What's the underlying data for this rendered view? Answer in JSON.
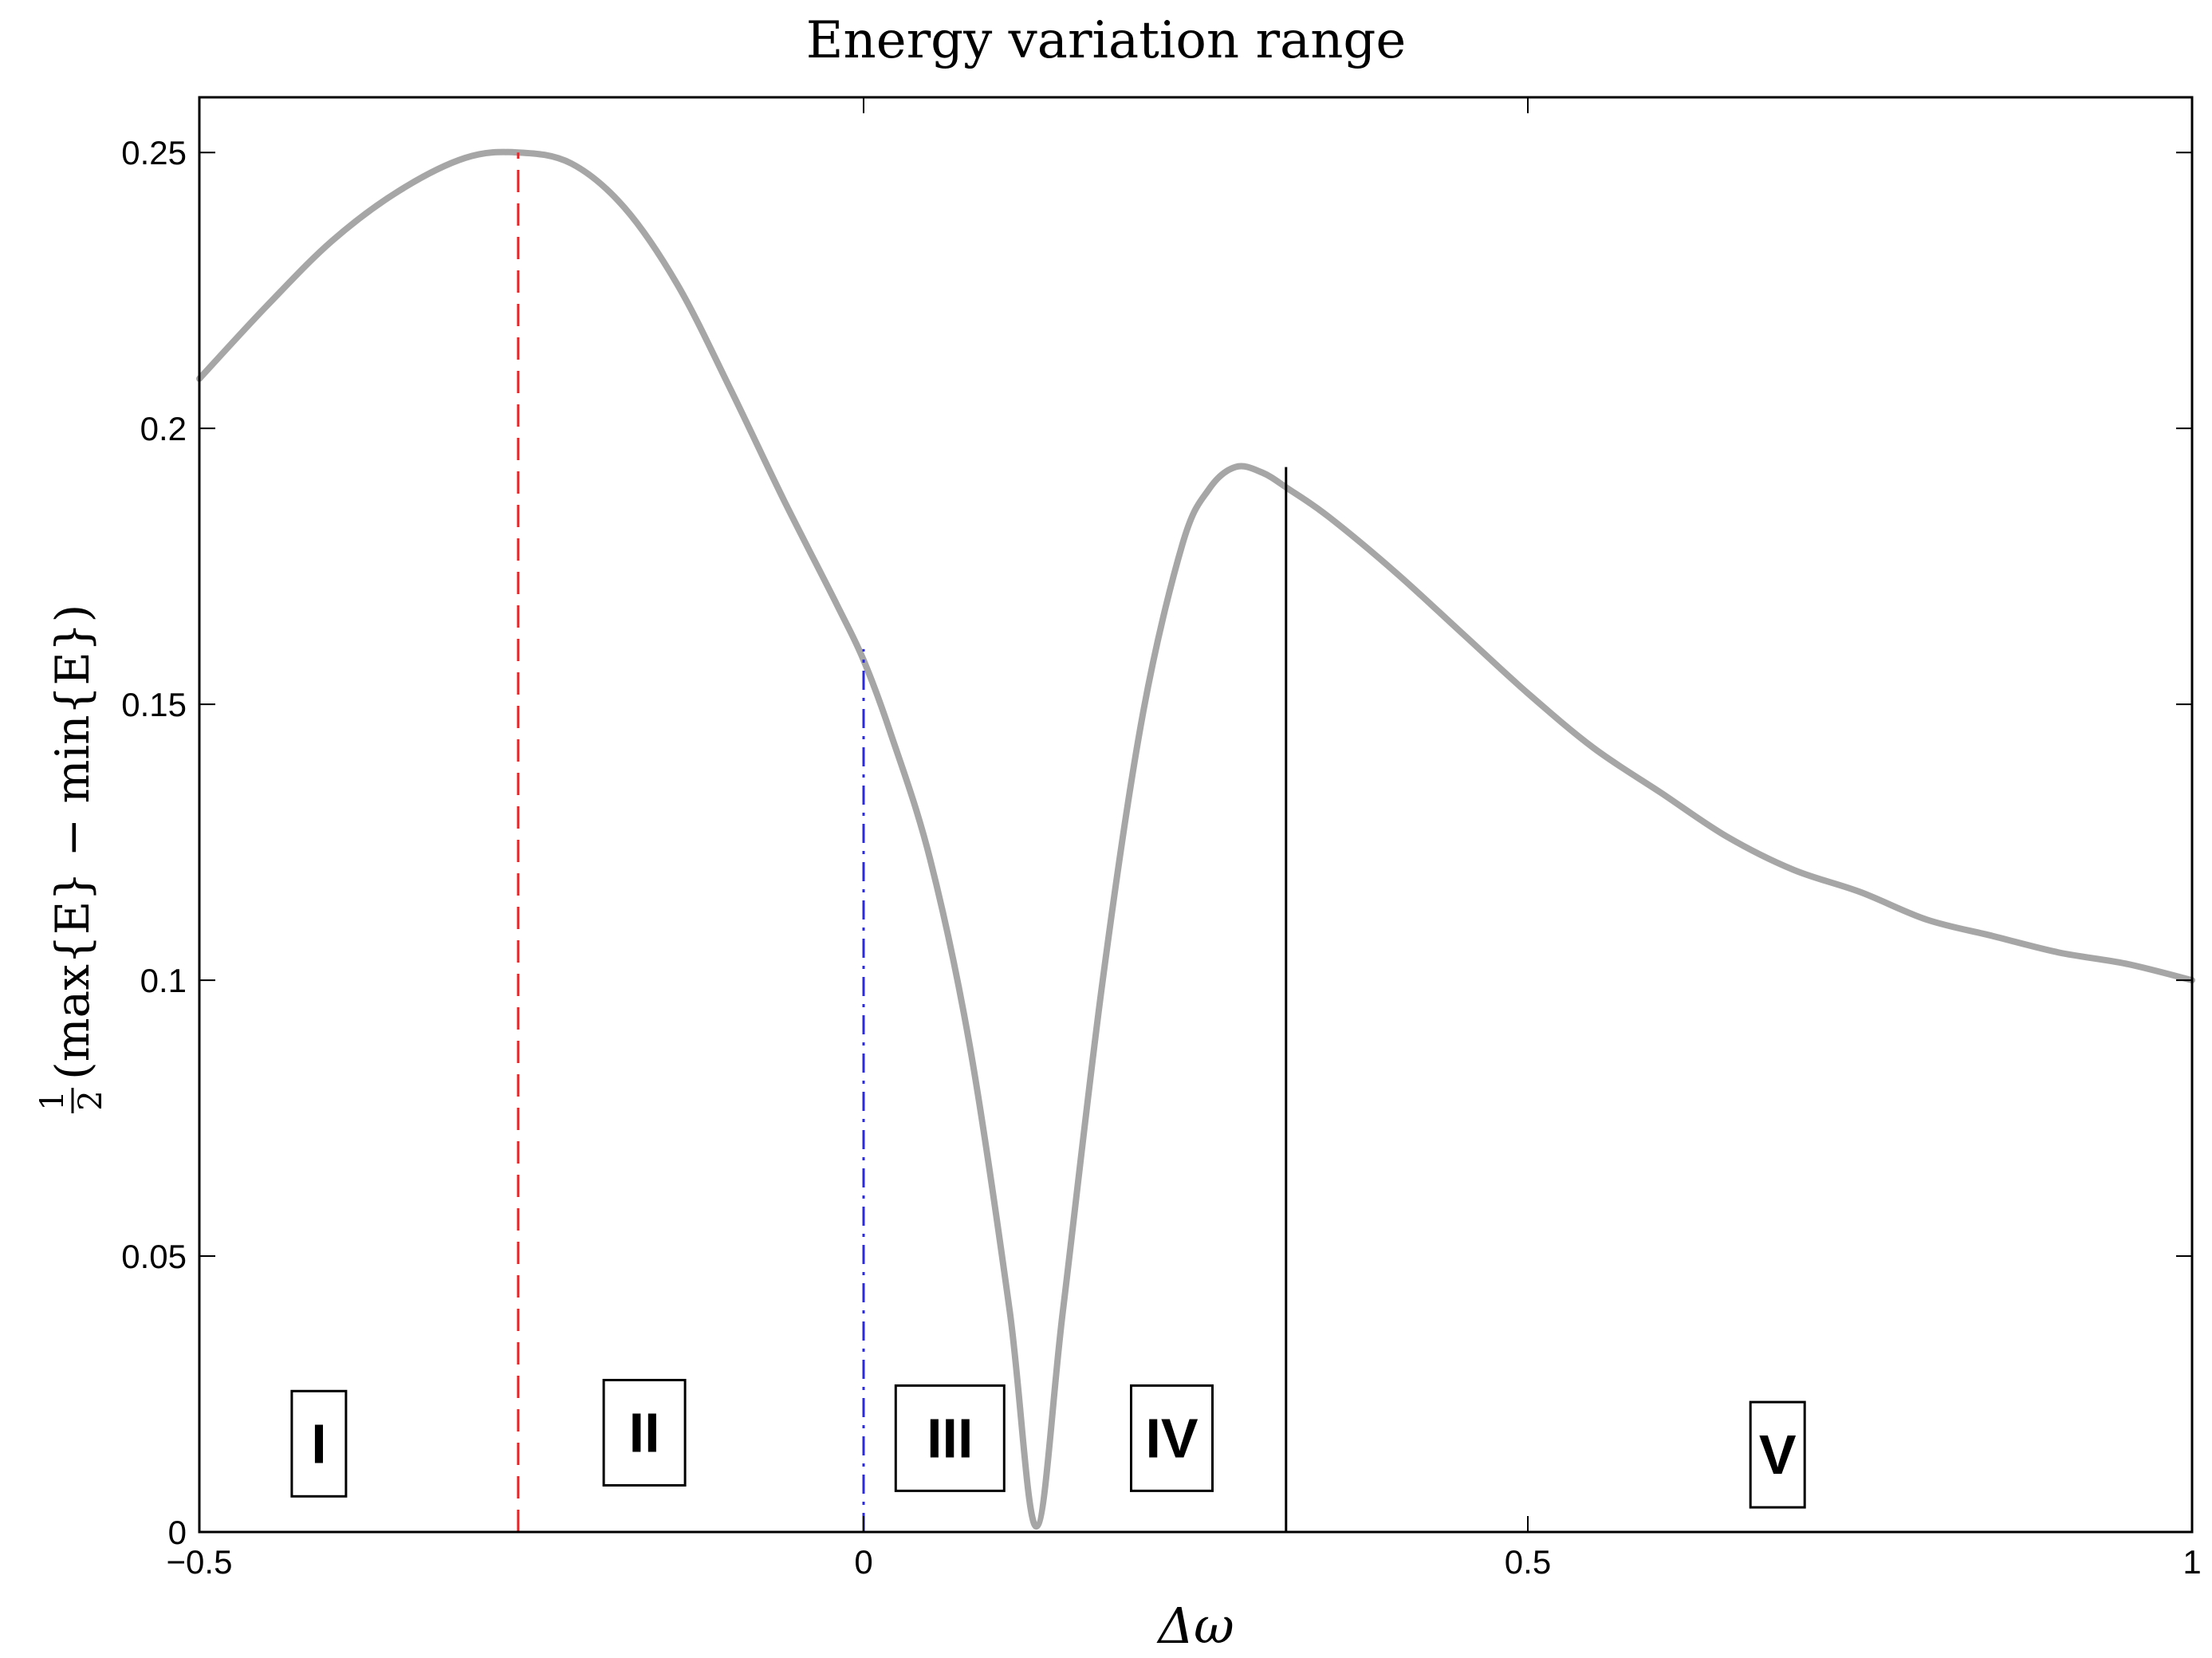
{
  "chart_data": {
    "type": "line",
    "title": "Energy variation range",
    "xlabel": "Δω",
    "ylabel": {
      "frac_num": "1",
      "frac_den": "2",
      "text": "(max{E} − min{E})"
    },
    "xlim": [
      -0.5,
      1
    ],
    "ylim": [
      0,
      0.26
    ],
    "xticks": [
      -0.5,
      0,
      0.5,
      1
    ],
    "xtick_labels": [
      "−0.5",
      "0",
      "0.5",
      "1"
    ],
    "yticks": [
      0,
      0.05,
      0.1,
      0.15,
      0.2,
      0.25
    ],
    "ytick_labels": [
      "0",
      "0.05",
      "0.1",
      "0.15",
      "0.2",
      "0.25"
    ],
    "grid": false,
    "series": [
      {
        "name": "energy variation range",
        "color": "#a6a6a6",
        "x": [
          -0.5,
          -0.45,
          -0.4,
          -0.35,
          -0.3,
          -0.26,
          -0.22,
          -0.18,
          -0.14,
          -0.1,
          -0.06,
          -0.02,
          0,
          0.02,
          0.05,
          0.08,
          0.11,
          0.13,
          0.15,
          0.18,
          0.21,
          0.24,
          0.26,
          0.28,
          0.3,
          0.32,
          0.35,
          0.4,
          0.45,
          0.5,
          0.55,
          0.6,
          0.65,
          0.7,
          0.75,
          0.8,
          0.85,
          0.9,
          0.95,
          1.0
        ],
        "y": [
          0.209,
          0.222,
          0.234,
          0.243,
          0.249,
          0.25,
          0.248,
          0.24,
          0.226,
          0.207,
          0.187,
          0.168,
          0.158,
          0.145,
          0.122,
          0.088,
          0.04,
          0.001,
          0.04,
          0.1,
          0.148,
          0.179,
          0.189,
          0.193,
          0.192,
          0.189,
          0.184,
          0.174,
          0.163,
          0.152,
          0.142,
          0.134,
          0.126,
          0.12,
          0.116,
          0.111,
          0.108,
          0.105,
          0.103,
          0.1
        ]
      }
    ],
    "vlines": [
      {
        "name": "red-dashed",
        "x": -0.26,
        "y_top": 0.25,
        "color": "#e8262a",
        "style": "dashed"
      },
      {
        "name": "blue-dashdot",
        "x": 0,
        "y_top": 0.16,
        "color": "#2b2bdc",
        "style": "dashdot"
      },
      {
        "name": "black-solid",
        "x": 0.318,
        "y_top": 0.193,
        "color": "#000000",
        "style": "solid"
      }
    ],
    "region_labels": [
      {
        "text": "I",
        "x": -0.41,
        "y": 0.016
      },
      {
        "text": "II",
        "x": -0.165,
        "y": 0.018
      },
      {
        "text": "III",
        "x": 0.065,
        "y": 0.017
      },
      {
        "text": "IV",
        "x": 0.232,
        "y": 0.017
      },
      {
        "text": "V",
        "x": 0.688,
        "y": 0.014
      }
    ]
  }
}
